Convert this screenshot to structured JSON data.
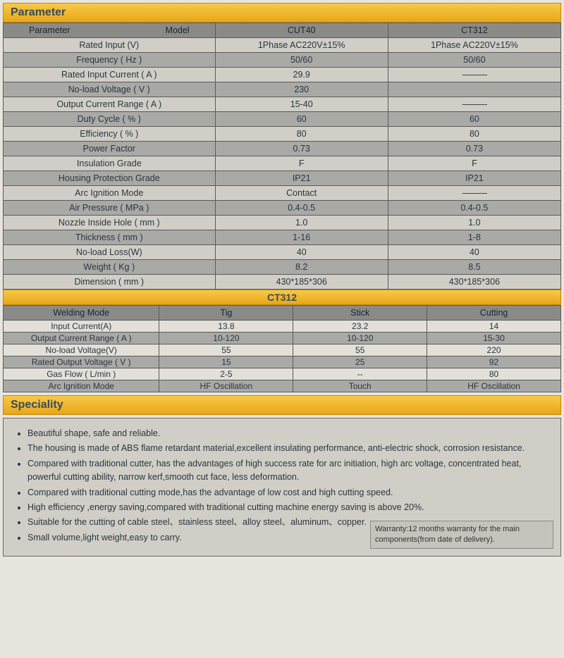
{
  "colors": {
    "header_gradient_top": "#f7c948",
    "header_gradient_bottom": "#e8a617",
    "header_border": "#c28810",
    "row_dark": "#8a8a88",
    "row_gray": "#a9a9a6",
    "row_light": "#d0cec6",
    "row_pale": "#e2e0d8",
    "page_bg": "#e8e5df",
    "text": "#2a3540",
    "border": "#5a5a5a"
  },
  "sections": {
    "parameter_title": "Parameter",
    "ct312_title": "CT312",
    "speciality_title": "Speciality"
  },
  "param_table": {
    "header": {
      "c1": "Parameter",
      "c2": "Model",
      "c3": "CUT40",
      "c4": "CT312"
    },
    "rows": [
      {
        "label": "Rated Input (V)",
        "v1": "1Phase AC220V±15%",
        "v2": "1Phase AC220V±15%",
        "shade": "row-light"
      },
      {
        "label": "Frequency ( Hz )",
        "v1": "50/60",
        "v2": "50/60",
        "shade": "row-gray"
      },
      {
        "label": "Rated Input Current ( A )",
        "v1": "29.9",
        "v2": "———",
        "shade": "row-light"
      },
      {
        "label": "No-load Voltage ( V )",
        "v1": "230",
        "v2": "",
        "shade": "row-gray"
      },
      {
        "label": "Output Current Range ( A )",
        "v1": "15-40",
        "v2": "———",
        "shade": "row-light"
      },
      {
        "label": "Duty Cycle ( % )",
        "v1": "60",
        "v2": "60",
        "shade": "row-gray"
      },
      {
        "label": "Efficiency ( % )",
        "v1": "80",
        "v2": "80",
        "shade": "row-light"
      },
      {
        "label": "Power Factor",
        "v1": "0.73",
        "v2": "0.73",
        "shade": "row-gray"
      },
      {
        "label": "Insulation Grade",
        "v1": "F",
        "v2": "F",
        "shade": "row-light"
      },
      {
        "label": "Housing Protection Grade",
        "v1": "IP21",
        "v2": "IP21",
        "shade": "row-gray"
      },
      {
        "label": "Arc Ignition Mode",
        "v1": "Contact",
        "v2": "———",
        "shade": "row-light"
      },
      {
        "label": "Air Pressure ( MPa )",
        "v1": "0.4-0.5",
        "v2": "0.4-0.5",
        "shade": "row-gray"
      },
      {
        "label": "Nozzle Inside Hole ( mm )",
        "v1": "1.0",
        "v2": "1.0",
        "shade": "row-light"
      },
      {
        "label": "Thickness ( mm )",
        "v1": "1-16",
        "v2": "1-8",
        "shade": "row-gray"
      },
      {
        "label": "No-load Loss(W)",
        "v1": "40",
        "v2": "40",
        "shade": "row-light"
      },
      {
        "label": "Weight ( Kg )",
        "v1": "8.2",
        "v2": "8.5",
        "shade": "row-gray"
      },
      {
        "label": "Dimension ( mm )",
        "v1": "430*185*306",
        "v2": "430*185*306",
        "shade": "row-light"
      }
    ]
  },
  "ct312_table": {
    "header": {
      "c1": "Welding Mode",
      "c2": "Tig",
      "c3": "Stick",
      "c4": "Cutting"
    },
    "rows": [
      {
        "label": "Input Current(A)",
        "v1": "13.8",
        "v2": "23.2",
        "v3": "14",
        "shade": "row-pale"
      },
      {
        "label": "Output Current Range ( A )",
        "v1": "10-120",
        "v2": "10-120",
        "v3": "15-30",
        "shade": "row-gray"
      },
      {
        "label": "No-load Voltage(V)",
        "v1": "55",
        "v2": "55",
        "v3": "220",
        "shade": "row-pale"
      },
      {
        "label": "Rated Output Voltage ( V )",
        "v1": "15",
        "v2": "25",
        "v3": "92",
        "shade": "row-gray"
      },
      {
        "label": "Gas Flow ( L/min )",
        "v1": "2-5",
        "v2": "--",
        "v3": "80",
        "shade": "row-pale"
      },
      {
        "label": "Arc Ignition Mode",
        "v1": "HF Oscillation",
        "v2": "Touch",
        "v3": "HF Oscillation",
        "shade": "row-gray"
      }
    ]
  },
  "speciality": {
    "items": [
      "Beautiful shape, safe and reliable.",
      "The housing is made of ABS flame retardant material,excellent insulating performance, anti-electric shock, corrosion resistance.",
      "Compared with traditional cutter, has the advantages of high success rate for arc initiation, high arc voltage, concentrated heat, powerful cutting ability, narrow kerf,smooth cut face, less deformation.",
      "Compared with traditional cutting mode,has the advantage of low cost and high cutting speed.",
      "High efficiency ,energy saving,compared with traditional cutting machine energy saving is above 20%.",
      "Suitable for the cutting of cable steel、stainless steel、alloy steel、aluminum、copper.",
      "Small volume,light weight,easy to carry."
    ],
    "warranty": "Warranty:12 months warranty for the main components(from date of delivery)."
  }
}
